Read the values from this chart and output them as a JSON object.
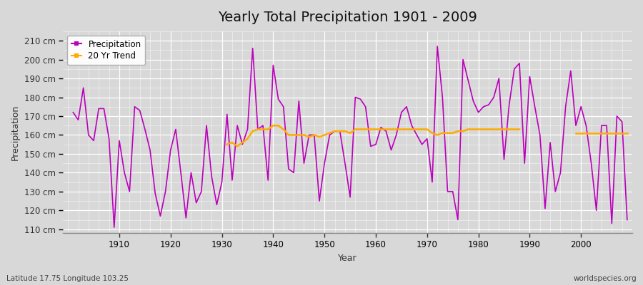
{
  "title": "Yearly Total Precipitation 1901 - 2009",
  "xlabel": "Year",
  "ylabel": "Precipitation",
  "subtitle": "Latitude 17.75 Longitude 103.25",
  "watermark": "worldspecies.org",
  "ylim": [
    108,
    215
  ],
  "yticks": [
    110,
    120,
    130,
    140,
    150,
    160,
    170,
    180,
    190,
    200,
    210
  ],
  "ytick_labels": [
    "110 cm",
    "120 cm",
    "130 cm",
    "140 cm",
    "150 cm",
    "160 cm",
    "170 cm",
    "180 cm",
    "190 cm",
    "200 cm",
    "210 cm"
  ],
  "fig_bg_color": "#d8d8d8",
  "plot_bg_color": "#d8d8d8",
  "precip_color": "#bb00bb",
  "trend_color": "#ffaa00",
  "years": [
    1901,
    1902,
    1903,
    1904,
    1905,
    1906,
    1907,
    1908,
    1909,
    1910,
    1911,
    1912,
    1913,
    1914,
    1915,
    1916,
    1917,
    1918,
    1919,
    1920,
    1921,
    1922,
    1923,
    1924,
    1925,
    1926,
    1927,
    1928,
    1929,
    1930,
    1931,
    1932,
    1933,
    1934,
    1935,
    1936,
    1937,
    1938,
    1939,
    1940,
    1941,
    1942,
    1943,
    1944,
    1945,
    1946,
    1947,
    1948,
    1949,
    1950,
    1951,
    1952,
    1953,
    1954,
    1955,
    1956,
    1957,
    1958,
    1959,
    1960,
    1961,
    1962,
    1963,
    1964,
    1965,
    1966,
    1967,
    1968,
    1969,
    1970,
    1971,
    1972,
    1973,
    1974,
    1975,
    1976,
    1977,
    1978,
    1979,
    1980,
    1981,
    1982,
    1983,
    1984,
    1985,
    1986,
    1987,
    1988,
    1989,
    1990,
    1991,
    1992,
    1993,
    1994,
    1995,
    1996,
    1997,
    1998,
    1999,
    2000,
    2001,
    2002,
    2003,
    2004,
    2005,
    2006,
    2007,
    2008,
    2009
  ],
  "precip": [
    172,
    168,
    185,
    160,
    157,
    174,
    174,
    158,
    111,
    157,
    140,
    130,
    175,
    173,
    163,
    152,
    129,
    117,
    130,
    152,
    163,
    140,
    116,
    140,
    124,
    130,
    165,
    138,
    123,
    135,
    171,
    136,
    165,
    155,
    163,
    206,
    163,
    165,
    136,
    197,
    179,
    175,
    142,
    140,
    178,
    145,
    160,
    160,
    125,
    145,
    160,
    162,
    162,
    145,
    127,
    180,
    179,
    175,
    154,
    155,
    164,
    162,
    152,
    160,
    172,
    175,
    165,
    160,
    155,
    158,
    135,
    207,
    180,
    130,
    130,
    115,
    200,
    189,
    178,
    172,
    175,
    176,
    180,
    190,
    147,
    176,
    195,
    198,
    145,
    191,
    175,
    160,
    121,
    156,
    130,
    140,
    175,
    194,
    165,
    175,
    165,
    145,
    120,
    165,
    165,
    113,
    170,
    167,
    115
  ],
  "trend_seg1_years": [
    1931,
    1932,
    1933,
    1934,
    1935,
    1936,
    1937,
    1938,
    1939,
    1940,
    1941,
    1942,
    1943,
    1944,
    1945,
    1946,
    1947,
    1948,
    1949,
    1950,
    1951,
    1952,
    1953,
    1954,
    1955,
    1956,
    1957,
    1958,
    1959,
    1960,
    1961,
    1962,
    1963,
    1964,
    1965,
    1966,
    1967,
    1968,
    1969,
    1970,
    1971,
    1972,
    1973,
    1974,
    1975,
    1976,
    1977,
    1978,
    1979,
    1980,
    1981,
    1982,
    1983,
    1984,
    1985,
    1986,
    1987,
    1988
  ],
  "trend_seg1": [
    155,
    156,
    154,
    156,
    158,
    162,
    163,
    163,
    163,
    165,
    165,
    163,
    160,
    160,
    160,
    160,
    159,
    160,
    159,
    160,
    161,
    162,
    162,
    162,
    161,
    163,
    163,
    163,
    163,
    163,
    163,
    163,
    163,
    163,
    163,
    163,
    163,
    163,
    163,
    163,
    161,
    160,
    161,
    161,
    161,
    162,
    162,
    163,
    163,
    163,
    163,
    163,
    163,
    163,
    163,
    163,
    163,
    163
  ],
  "trend_seg2_years": [
    1999,
    2000,
    2001,
    2002,
    2003,
    2004,
    2005,
    2006,
    2007,
    2008,
    2009
  ],
  "trend_seg2": [
    161,
    161,
    161,
    161,
    161,
    161,
    161,
    161,
    161,
    161,
    161
  ]
}
